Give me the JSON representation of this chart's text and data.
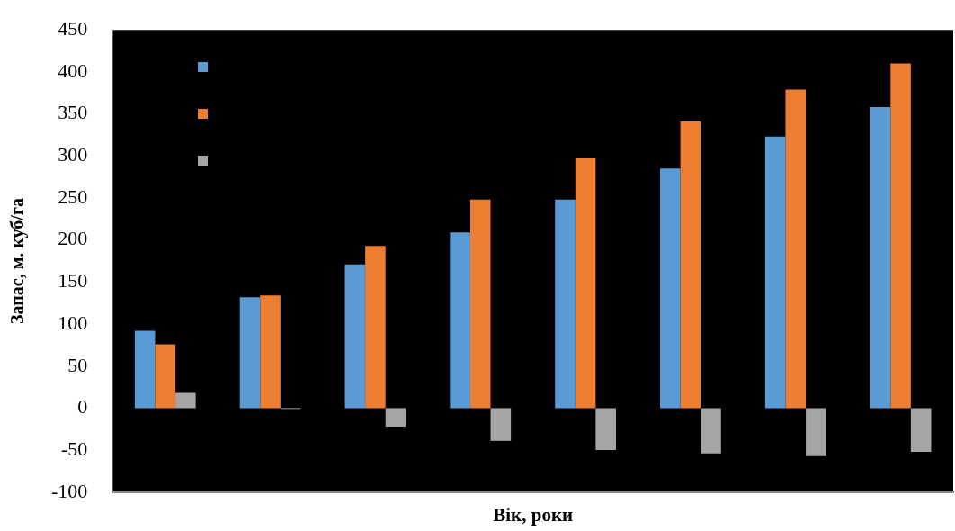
{
  "chart_data": {
    "type": "bar",
    "xlabel": "Вік, роки",
    "ylabel": "Запас, м. куб/га",
    "categories": [
      null,
      null,
      null,
      null,
      null,
      null,
      null,
      null
    ],
    "series": [
      {
        "color": "#5b9bd5",
        "values": [
          92,
          132,
          171,
          209,
          248,
          285,
          323,
          358
        ]
      },
      {
        "color": "#ed7d31",
        "values": [
          76,
          134,
          193,
          248,
          297,
          341,
          379,
          410
        ]
      },
      {
        "color": "#a5a5a5",
        "values": [
          18,
          -1,
          -22,
          -39,
          -50,
          -54,
          -57,
          -52
        ]
      }
    ],
    "ylim": [
      -100,
      450
    ],
    "yticks": [
      -100,
      -50,
      0,
      50,
      100,
      150,
      200,
      250,
      300,
      350,
      400,
      450
    ],
    "tick_labels": "y"
  }
}
